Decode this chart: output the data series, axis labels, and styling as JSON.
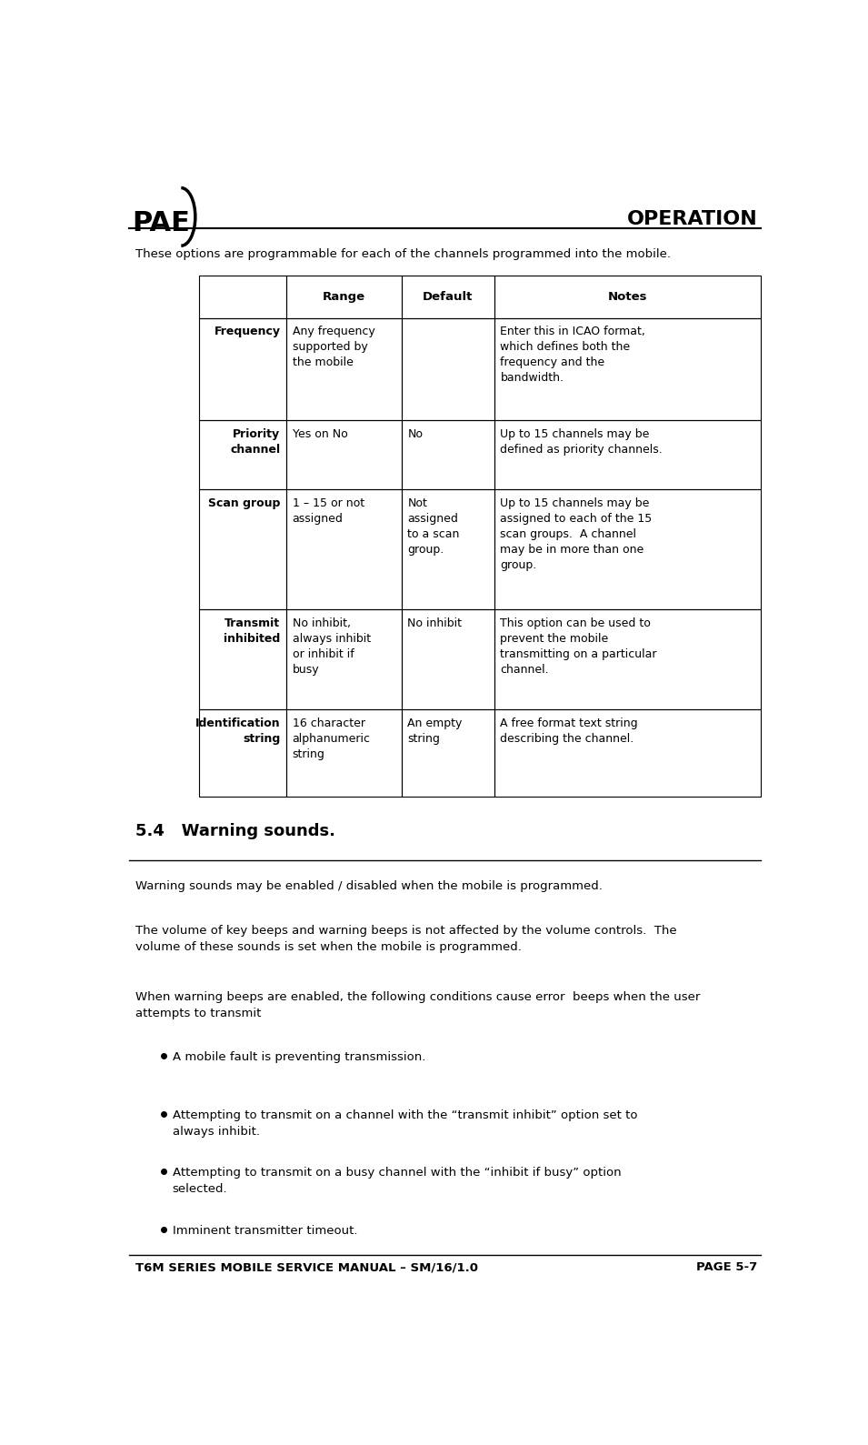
{
  "bg_color": "#ffffff",
  "header_line_color": "#000000",
  "logo_text": "PAE",
  "operation_text": "OPERATION",
  "intro_text": "These options are programmable for each of the channels programmed into the mobile.",
  "table_headers": [
    "",
    "Range",
    "Default",
    "Notes"
  ],
  "table_rows": [
    {
      "col0": "Frequency",
      "col1": "Any frequency\nsupported by\nthe mobile",
      "col2": "",
      "col3": "Enter this in ICAO format,\nwhich defines both the\nfrequency and the\nbandwidth."
    },
    {
      "col0": "Priority\nchannel",
      "col1": "Yes on No",
      "col2": "No",
      "col3": "Up to 15 channels may be\ndefined as priority channels."
    },
    {
      "col0": "Scan group",
      "col1": "1 – 15 or not\nassigned",
      "col2": "Not\nassigned\nto a scan\ngroup.",
      "col3": "Up to 15 channels may be\nassigned to each of the 15\nscan groups.  A channel\nmay be in more than one\ngroup."
    },
    {
      "col0": "Transmit\ninhibited",
      "col1": "No inhibit,\nalways inhibit\nor inhibit if\nbusy",
      "col2": "No inhibit",
      "col3": "This option can be used to\nprevent the mobile\ntransmitting on a particular\nchannel."
    },
    {
      "col0": "Identification\nstring",
      "col1": "16 character\nalphanumeric\nstring",
      "col2": "An empty\nstring",
      "col3": "A free format text string\ndescribing the channel."
    }
  ],
  "section_title": "5.4   Warning sounds.",
  "para1": "Warning sounds may be enabled / disabled when the mobile is programmed.",
  "para2": "The volume of key beeps and warning beeps is not affected by the volume controls.  The\nvolume of these sounds is set when the mobile is programmed.",
  "para3": "When warning beeps are enabled, the following conditions cause error  beeps when the user\nattempts to transmit",
  "bullets": [
    "A mobile fault is preventing transmission.",
    "Attempting to transmit on a channel with the “transmit inhibit” option set to\nalways inhibit.",
    "Attempting to transmit on a busy channel with the “inhibit if busy” option\nselected.",
    "Imminent transmitter timeout."
  ],
  "footer_left": "T6M SERIES MOBILE SERVICE MANUAL – SM/16/1.0",
  "footer_right": "PAGE 5-7"
}
